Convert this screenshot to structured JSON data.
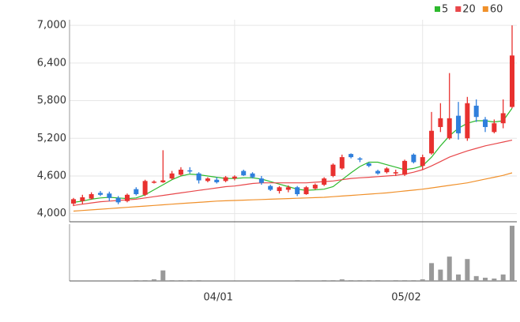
{
  "chart_data": {
    "type": "candlestick",
    "categories": [
      null,
      null,
      null,
      null,
      null,
      null,
      null,
      null,
      null,
      null,
      null,
      null,
      null,
      null,
      null,
      null,
      null,
      null,
      "04/01",
      null,
      null,
      null,
      null,
      null,
      null,
      null,
      null,
      null,
      null,
      null,
      null,
      null,
      null,
      null,
      null,
      null,
      null,
      null,
      null,
      "05/02",
      null,
      null,
      null,
      null,
      null,
      null,
      null,
      null,
      null,
      null
    ],
    "open": [
      4160,
      4200,
      4240,
      4330,
      4320,
      4250,
      4200,
      4390,
      4300,
      4500,
      4500,
      4560,
      4620,
      4690,
      4640,
      4520,
      4540,
      4520,
      4560,
      4680,
      4640,
      4560,
      4440,
      4360,
      4380,
      4420,
      4310,
      4400,
      4460,
      4600,
      4720,
      4950,
      4880,
      4800,
      4680,
      4660,
      4640,
      4620,
      4940,
      4760,
      4960,
      5380,
      5200,
      5560,
      5200,
      5720,
      5500,
      5300,
      5440,
      5700
    ],
    "high": [
      4250,
      4300,
      4340,
      4360,
      4350,
      4280,
      4320,
      4420,
      4540,
      4530,
      5010,
      4680,
      4740,
      4740,
      4660,
      4580,
      4580,
      4600,
      4610,
      4700,
      4660,
      4600,
      4460,
      4440,
      4450,
      4440,
      4440,
      4480,
      4580,
      4800,
      4940,
      4960,
      4900,
      4820,
      4700,
      4740,
      4700,
      4860,
      4960,
      4940,
      5620,
      5760,
      6240,
      5780,
      5860,
      5820,
      5540,
      5500,
      5820,
      7000
    ],
    "low": [
      4120,
      4150,
      4220,
      4280,
      4200,
      4150,
      4180,
      4290,
      4280,
      4480,
      4490,
      4540,
      4600,
      4640,
      4480,
      4500,
      4480,
      4500,
      4530,
      4600,
      4560,
      4460,
      4360,
      4320,
      4340,
      4280,
      4300,
      4380,
      4440,
      4580,
      4700,
      4880,
      4820,
      4740,
      4620,
      4640,
      4600,
      4600,
      4800,
      4700,
      4940,
      5300,
      5180,
      5180,
      5160,
      5460,
      5300,
      5280,
      5360,
      5680
    ],
    "close": [
      4230,
      4260,
      4310,
      4300,
      4250,
      4180,
      4300,
      4310,
      4520,
      4510,
      4530,
      4640,
      4700,
      4680,
      4530,
      4560,
      4500,
      4580,
      4590,
      4610,
      4580,
      4490,
      4380,
      4420,
      4420,
      4310,
      4420,
      4460,
      4560,
      4780,
      4900,
      4900,
      4860,
      4760,
      4640,
      4720,
      4660,
      4840,
      4820,
      4900,
      5320,
      5520,
      5520,
      5280,
      5760,
      5540,
      5380,
      5440,
      5600,
      6520
    ],
    "up_color": "#e8312f",
    "down_color": "#2f7fdc",
    "series": [
      {
        "name": "5",
        "color": "#2db92d",
        "values": [
          4180,
          4200,
          4230,
          4250,
          4260,
          4250,
          4240,
          4250,
          4300,
          4380,
          4460,
          4540,
          4600,
          4630,
          4620,
          4600,
          4580,
          4560,
          4560,
          4570,
          4570,
          4550,
          4510,
          4470,
          4430,
          4390,
          4370,
          4380,
          4390,
          4430,
          4540,
          4650,
          4750,
          4820,
          4820,
          4780,
          4740,
          4700,
          4720,
          4760,
          4900,
          5080,
          5240,
          5360,
          5440,
          5480,
          5480,
          5460,
          5480,
          5680
        ]
      },
      {
        "name": "20",
        "color": "#e8474a",
        "values": [
          4130,
          4150,
          4170,
          4190,
          4200,
          4210,
          4220,
          4230,
          4250,
          4270,
          4290,
          4310,
          4330,
          4350,
          4370,
          4390,
          4410,
          4430,
          4440,
          4460,
          4480,
          4490,
          4490,
          4490,
          4490,
          4490,
          4490,
          4500,
          4510,
          4520,
          4540,
          4560,
          4570,
          4580,
          4590,
          4600,
          4610,
          4630,
          4660,
          4700,
          4760,
          4830,
          4900,
          4950,
          5000,
          5040,
          5080,
          5110,
          5140,
          5170
        ]
      },
      {
        "name": "60",
        "color": "#f0902a",
        "values": [
          4040,
          4050,
          4060,
          4070,
          4080,
          4090,
          4100,
          4110,
          4120,
          4130,
          4140,
          4150,
          4160,
          4170,
          4180,
          4190,
          4200,
          4205,
          4210,
          4215,
          4220,
          4225,
          4230,
          4235,
          4240,
          4245,
          4250,
          4255,
          4260,
          4270,
          4280,
          4290,
          4300,
          4310,
          4320,
          4330,
          4345,
          4360,
          4375,
          4390,
          4410,
          4430,
          4450,
          4470,
          4490,
          4520,
          4550,
          4580,
          4610,
          4650
        ]
      }
    ],
    "volume": [
      0,
      0,
      0,
      0,
      0,
      0,
      0,
      1,
      1,
      2,
      13,
      1,
      1,
      1,
      1,
      0,
      0,
      0,
      0,
      0,
      0,
      0,
      0,
      0,
      0,
      1,
      0,
      0,
      1,
      1,
      2,
      1,
      1,
      1,
      1,
      0,
      1,
      1,
      1,
      2,
      22,
      14,
      30,
      8,
      27,
      6,
      4,
      3,
      8,
      68
    ],
    "volume_color": "#999999",
    "volume_lim": [
      0,
      70
    ],
    "ylim": [
      3870,
      7090
    ],
    "yticks": [
      {
        "value": 4000,
        "label": "4,000"
      },
      {
        "value": 4600,
        "label": "4,600"
      },
      {
        "value": 5200,
        "label": "5,200"
      },
      {
        "value": 5800,
        "label": "5,800"
      },
      {
        "value": 6400,
        "label": "6,400"
      },
      {
        "value": 7000,
        "label": "7,000"
      }
    ],
    "grid": true
  }
}
